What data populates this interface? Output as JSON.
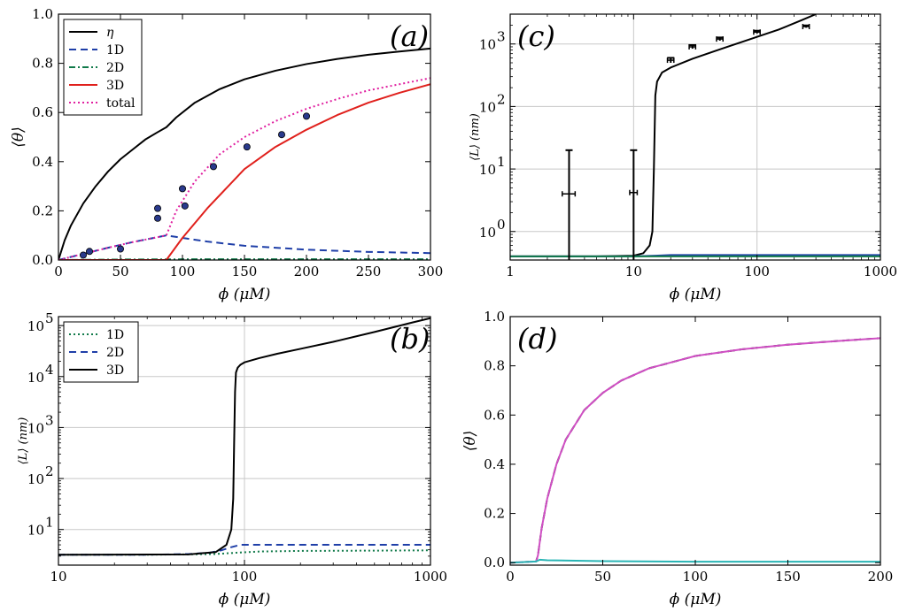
{
  "chart_data": [
    {
      "id": "a",
      "type": "line",
      "panel_label": "(a)",
      "xscale": "linear",
      "yscale": "linear",
      "xlim": [
        0,
        300
      ],
      "ylim": [
        0,
        1.0
      ],
      "xticks": [
        0,
        50,
        100,
        150,
        200,
        250,
        300
      ],
      "xtick_labels": [
        "0",
        "50",
        "100",
        "150",
        "200",
        "250",
        "300"
      ],
      "yticks": [
        0,
        0.2,
        0.4,
        0.6,
        0.8,
        1.0
      ],
      "ytick_labels": [
        "0.0",
        "0.2",
        "0.4",
        "0.6",
        "0.8",
        "1.0"
      ],
      "xlabel": "ϕ (μM)",
      "ylabel": "⟨θ⟩",
      "grid": false,
      "legend_position": "top-left",
      "series": [
        {
          "name": "η",
          "style": "solid",
          "color": "#000000",
          "x": [
            0,
            5,
            10,
            20,
            30,
            40,
            50,
            60,
            70,
            80,
            87,
            95,
            110,
            130,
            150,
            175,
            200,
            225,
            250,
            275,
            300
          ],
          "y": [
            0,
            0.08,
            0.14,
            0.23,
            0.3,
            0.36,
            0.41,
            0.45,
            0.49,
            0.52,
            0.54,
            0.58,
            0.64,
            0.695,
            0.735,
            0.77,
            0.797,
            0.818,
            0.835,
            0.848,
            0.86
          ]
        },
        {
          "name": "1D",
          "style": "dashed",
          "color": "#1f3fa8",
          "x": [
            0,
            20,
            40,
            60,
            87,
            100,
            120,
            150,
            200,
            250,
            300
          ],
          "y": [
            0,
            0.025,
            0.05,
            0.073,
            0.1,
            0.09,
            0.075,
            0.058,
            0.042,
            0.033,
            0.028
          ]
        },
        {
          "name": "2D",
          "style": "dashdot",
          "color": "#117a4a",
          "x": [
            0,
            50,
            100,
            150,
            200,
            250,
            300
          ],
          "y": [
            0,
            0.002,
            0.003,
            0.003,
            0.003,
            0.003,
            0.003
          ]
        },
        {
          "name": "3D",
          "style": "solid",
          "color": "#e0201c",
          "x": [
            0,
            87,
            100,
            120,
            150,
            175,
            200,
            225,
            250,
            275,
            300
          ],
          "y": [
            0,
            0,
            0.09,
            0.21,
            0.37,
            0.46,
            0.53,
            0.59,
            0.64,
            0.68,
            0.715
          ]
        },
        {
          "name": "total",
          "style": "dotted",
          "color": "#e020a0",
          "x": [
            0,
            20,
            40,
            60,
            87,
            95,
            110,
            130,
            150,
            175,
            200,
            225,
            250,
            275,
            300
          ],
          "y": [
            0,
            0.025,
            0.05,
            0.073,
            0.1,
            0.2,
            0.32,
            0.43,
            0.5,
            0.565,
            0.615,
            0.655,
            0.69,
            0.715,
            0.74
          ]
        }
      ],
      "markers": {
        "color": "#2a3a8c",
        "x": [
          20,
          25,
          50,
          80,
          80,
          100,
          102,
          125,
          152,
          180,
          200
        ],
        "y": [
          0.02,
          0.035,
          0.045,
          0.21,
          0.17,
          0.29,
          0.22,
          0.38,
          0.46,
          0.51,
          0.585
        ]
      },
      "legend": [
        "η",
        "1D",
        "2D",
        "3D",
        "total"
      ]
    },
    {
      "id": "b",
      "type": "line",
      "panel_label": "(b)",
      "xscale": "log",
      "yscale": "log",
      "xlim": [
        10,
        1000
      ],
      "ylim": [
        2,
        150000
      ],
      "xticks": [
        10,
        100,
        1000
      ],
      "xtick_labels": [
        "10",
        "100",
        "1000"
      ],
      "yticks": [
        10,
        100,
        1000,
        10000,
        100000
      ],
      "ytick_labels": [
        "10",
        "10",
        "10",
        "10",
        "10"
      ],
      "ytick_exponents": [
        "1",
        "2",
        "3",
        "4",
        "5"
      ],
      "xlabel": "ϕ (μM)",
      "ylabel": "⟨L⟩ (nm)",
      "grid": true,
      "legend_position": "top-left",
      "series": [
        {
          "name": "1D",
          "style": "dotted",
          "color": "#117a4a",
          "x": [
            10,
            30,
            50,
            70,
            90,
            120,
            200,
            500,
            1000
          ],
          "y": [
            3.2,
            3.2,
            3.25,
            3.3,
            3.5,
            3.7,
            3.8,
            3.85,
            3.9
          ]
        },
        {
          "name": "2D",
          "style": "dashed",
          "color": "#1f3fa8",
          "x": [
            10,
            30,
            50,
            65,
            75,
            85,
            95,
            110,
            200,
            500,
            1000
          ],
          "y": [
            3.2,
            3.2,
            3.3,
            3.5,
            3.9,
            4.5,
            5.0,
            5.0,
            5.0,
            5.0,
            5.0
          ]
        },
        {
          "name": "3D",
          "style": "solid",
          "color": "#000000",
          "x": [
            10,
            50,
            70,
            80,
            85,
            87,
            88,
            89,
            90,
            92,
            95,
            100,
            120,
            150,
            200,
            300,
            500,
            800,
            1000
          ],
          "y": [
            3.2,
            3.25,
            3.6,
            5,
            10,
            40,
            500,
            5000,
            12000,
            15000,
            17000,
            19000,
            23000,
            28000,
            35000,
            48000,
            75000,
            115000,
            140000
          ]
        }
      ],
      "legend": [
        "1D",
        "2D",
        "3D"
      ]
    },
    {
      "id": "c",
      "type": "line",
      "panel_label": "(c)",
      "xscale": "log",
      "yscale": "log",
      "xlim": [
        1,
        1000
      ],
      "ylim": [
        0.35,
        3000
      ],
      "xticks": [
        1,
        10,
        100,
        1000
      ],
      "xtick_labels": [
        "1",
        "10",
        "100",
        "1000"
      ],
      "yticks": [
        1,
        10,
        100,
        1000
      ],
      "ytick_labels": [
        "10",
        "10",
        "10",
        "10"
      ],
      "ytick_exponents": [
        "0",
        "1",
        "2",
        "3"
      ],
      "xlabel": "ϕ (μM)",
      "ylabel": "⟨L⟩ (nm)",
      "grid": true,
      "legend_position": "none",
      "series": [
        {
          "name": "3D",
          "style": "solid",
          "color": "#000000",
          "x": [
            1,
            5,
            10,
            12,
            13.5,
            14.2,
            14.6,
            15,
            15.5,
            17,
            20,
            30,
            50,
            100,
            150,
            230,
            300
          ],
          "y": [
            0.4,
            0.4,
            0.41,
            0.45,
            0.6,
            1.0,
            10,
            150,
            250,
            350,
            420,
            580,
            820,
            1300,
            1700,
            2400,
            3000
          ]
        },
        {
          "name": "1D",
          "style": "solid",
          "color": "#1f3fa8",
          "x": [
            1,
            10,
            15,
            20,
            50,
            1000
          ],
          "y": [
            0.4,
            0.4,
            0.41,
            0.42,
            0.42,
            0.42
          ]
        },
        {
          "name": "2D",
          "style": "solid",
          "color": "#117a4a",
          "x": [
            1,
            10,
            15,
            20,
            50,
            1000
          ],
          "y": [
            0.4,
            0.4,
            0.4,
            0.4,
            0.4,
            0.4
          ]
        }
      ],
      "errorbars": {
        "color": "#000000",
        "x": [
          3,
          10,
          20,
          30,
          50,
          100,
          250
        ],
        "y": [
          4.0,
          4.2,
          550,
          900,
          1200,
          1550,
          1900
        ],
        "y_low": [
          0.35,
          0.35,
          500,
          840,
          1130,
          1470,
          1820
        ],
        "y_high": [
          20,
          20,
          600,
          960,
          1270,
          1630,
          1980
        ],
        "x_err_frac": [
          0.12,
          0.07,
          0.06,
          0.06,
          0.06,
          0.06,
          0.06
        ]
      }
    },
    {
      "id": "d",
      "type": "line",
      "panel_label": "(d)",
      "xscale": "linear",
      "yscale": "linear",
      "xlim": [
        0,
        200
      ],
      "ylim": [
        -0.01,
        1.0
      ],
      "xticks": [
        0,
        50,
        100,
        150,
        200
      ],
      "xtick_labels": [
        "0",
        "50",
        "100",
        "150",
        "200"
      ],
      "yticks": [
        0,
        0.2,
        0.4,
        0.6,
        0.8,
        1.0
      ],
      "ytick_labels": [
        "0.0",
        "0.2",
        "0.4",
        "0.6",
        "0.8",
        "1.0"
      ],
      "xlabel": "ϕ (μM)",
      "ylabel": "⟨θ⟩",
      "grid": false,
      "legend_position": "none",
      "series": [
        {
          "name": "η",
          "style": "dashed",
          "color": "#000000",
          "x": [
            0,
            14,
            15,
            17,
            20,
            25,
            30,
            40,
            50,
            60,
            75,
            100,
            125,
            150,
            175,
            205
          ],
          "y": [
            0,
            0.005,
            0.03,
            0.14,
            0.26,
            0.4,
            0.5,
            0.62,
            0.69,
            0.74,
            0.79,
            0.84,
            0.867,
            0.886,
            0.9,
            0.915
          ]
        },
        {
          "name": "total",
          "style": "solid",
          "color": "#d04fc4",
          "x": [
            0,
            14,
            15,
            17,
            20,
            25,
            30,
            40,
            50,
            60,
            75,
            100,
            125,
            150,
            175,
            205
          ],
          "y": [
            0,
            0.005,
            0.03,
            0.14,
            0.26,
            0.4,
            0.5,
            0.62,
            0.69,
            0.74,
            0.79,
            0.84,
            0.867,
            0.886,
            0.9,
            0.915
          ]
        },
        {
          "name": "1D",
          "style": "solid",
          "color": "#2ab5b5",
          "x": [
            0,
            14,
            16,
            20,
            50,
            100,
            150,
            205
          ],
          "y": [
            0,
            0.005,
            0.012,
            0.01,
            0.006,
            0.004,
            0.004,
            0.004
          ]
        }
      ]
    }
  ]
}
